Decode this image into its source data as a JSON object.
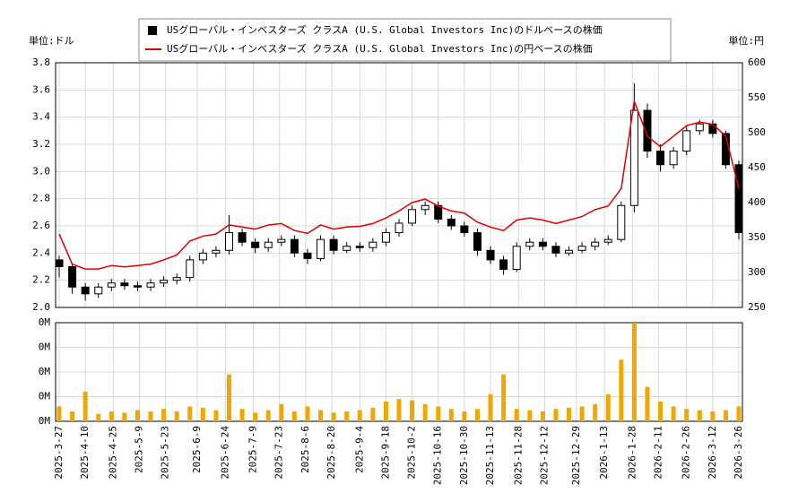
{
  "chart_data": [
    {
      "type": "candlestick",
      "x": [
        "2025-3-27",
        "2025-4-3",
        "2025-4-10",
        "2025-4-17",
        "2025-4-24",
        "2025-5-1",
        "2025-5-8",
        "2025-5-15",
        "2025-5-22",
        "2025-5-29",
        "2025-6-5",
        "2025-6-12",
        "2025-6-19",
        "2025-6-26",
        "2025-7-3",
        "2025-7-10",
        "2025-7-17",
        "2025-7-24",
        "2025-7-31",
        "2025-8-7",
        "2025-8-14",
        "2025-8-21",
        "2025-8-28",
        "2025-9-4",
        "2025-9-11",
        "2025-9-18",
        "2025-9-25",
        "2025-10-2",
        "2025-10-9",
        "2025-10-16",
        "2025-10-23",
        "2025-10-30",
        "2025-11-6",
        "2025-11-13",
        "2025-11-20",
        "2025-11-27",
        "2025-12-4",
        "2025-12-11",
        "2025-12-18",
        "2025-12-25",
        "2026-1-1",
        "2026-1-8",
        "2026-1-15",
        "2026-1-22",
        "2026-1-29",
        "2026-2-5",
        "2026-2-12",
        "2026-2-19",
        "2026-2-26",
        "2026-3-5",
        "2026-3-12",
        "2026-3-19",
        "2026-3-26"
      ],
      "series": [
        {
          "name": "USグローバル・インベスターズ クラスA (U.S. Global Investors Inc)のドルベースの株価",
          "color": "#000000",
          "open": [
            2.35,
            2.3,
            2.15,
            2.1,
            2.15,
            2.18,
            2.16,
            2.15,
            2.18,
            2.2,
            2.22,
            2.35,
            2.4,
            2.42,
            2.55,
            2.48,
            2.44,
            2.48,
            2.5,
            2.4,
            2.36,
            2.5,
            2.42,
            2.45,
            2.44,
            2.48,
            2.55,
            2.62,
            2.72,
            2.75,
            2.65,
            2.6,
            2.55,
            2.42,
            2.35,
            2.28,
            2.45,
            2.48,
            2.45,
            2.4,
            2.42,
            2.45,
            2.48,
            2.5,
            2.75,
            3.45,
            3.15,
            3.05,
            3.15,
            3.3,
            3.35,
            3.28,
            3.05
          ],
          "high": [
            2.38,
            2.32,
            2.18,
            2.18,
            2.21,
            2.21,
            2.19,
            2.21,
            2.23,
            2.25,
            2.38,
            2.43,
            2.45,
            2.68,
            2.58,
            2.51,
            2.51,
            2.53,
            2.53,
            2.43,
            2.53,
            2.53,
            2.48,
            2.48,
            2.51,
            2.58,
            2.65,
            2.75,
            2.78,
            2.78,
            2.68,
            2.63,
            2.58,
            2.45,
            2.38,
            2.48,
            2.51,
            2.51,
            2.48,
            2.45,
            2.48,
            2.51,
            2.53,
            2.78,
            3.65,
            3.5,
            3.2,
            3.18,
            3.33,
            3.38,
            3.38,
            3.3,
            3.08
          ],
          "low": [
            2.22,
            2.1,
            2.05,
            2.07,
            2.12,
            2.13,
            2.12,
            2.12,
            2.15,
            2.17,
            2.19,
            2.32,
            2.37,
            2.39,
            2.45,
            2.4,
            2.41,
            2.45,
            2.37,
            2.32,
            2.34,
            2.39,
            2.4,
            2.41,
            2.41,
            2.45,
            2.52,
            2.6,
            2.68,
            2.62,
            2.57,
            2.52,
            2.38,
            2.32,
            2.24,
            2.26,
            2.42,
            2.42,
            2.37,
            2.38,
            2.4,
            2.42,
            2.46,
            2.48,
            2.7,
            3.1,
            3.0,
            3.02,
            3.12,
            3.27,
            3.25,
            3.02,
            2.5
          ],
          "close": [
            2.3,
            2.15,
            2.1,
            2.15,
            2.18,
            2.16,
            2.15,
            2.18,
            2.2,
            2.22,
            2.35,
            2.4,
            2.42,
            2.55,
            2.48,
            2.44,
            2.48,
            2.5,
            2.4,
            2.36,
            2.5,
            2.42,
            2.45,
            2.44,
            2.48,
            2.55,
            2.62,
            2.72,
            2.75,
            2.65,
            2.6,
            2.55,
            2.42,
            2.35,
            2.28,
            2.45,
            2.48,
            2.45,
            2.4,
            2.42,
            2.45,
            2.48,
            2.5,
            2.75,
            3.45,
            3.15,
            3.05,
            3.15,
            3.3,
            3.35,
            3.28,
            3.05,
            2.55
          ]
        },
        {
          "name": "USグローバル・インベスターズ クラスA (U.S. Global Investors Inc)の円ベースの株価",
          "color": "#dd0000",
          "axis": "y2",
          "values": [
            355,
            312,
            305,
            305,
            310,
            308,
            310,
            312,
            318,
            325,
            345,
            352,
            355,
            368,
            365,
            362,
            368,
            370,
            360,
            356,
            368,
            362,
            365,
            366,
            370,
            378,
            388,
            400,
            405,
            395,
            388,
            385,
            372,
            365,
            360,
            375,
            378,
            375,
            370,
            375,
            380,
            390,
            395,
            420,
            545,
            495,
            480,
            495,
            510,
            515,
            512,
            495,
            420
          ]
        }
      ],
      "ylabel": "単位:ドル",
      "y2label": "単位:円",
      "ylim": [
        2.0,
        3.8
      ],
      "yticks": [
        {
          "value": 2,
          "label": "2.0"
        },
        2.2,
        2.4,
        2.6,
        2.8,
        {
          "value": 3,
          "label": "3.0"
        },
        3.2,
        3.4,
        3.6,
        3.8
      ],
      "y2lim": [
        250,
        600
      ],
      "y2ticks": [
        250,
        300,
        350,
        400,
        450,
        500,
        550,
        600
      ],
      "grid": true,
      "legend": "top"
    },
    {
      "type": "bar",
      "color": "#f0a800",
      "values": [
        60000,
        40000,
        120000,
        30000,
        40000,
        35000,
        45000,
        40000,
        50000,
        40000,
        60000,
        55000,
        45000,
        190000,
        50000,
        35000,
        45000,
        70000,
        40000,
        60000,
        45000,
        35000,
        40000,
        45000,
        55000,
        80000,
        90000,
        85000,
        70000,
        60000,
        50000,
        40000,
        50000,
        110000,
        190000,
        50000,
        45000,
        40000,
        50000,
        55000,
        60000,
        70000,
        110000,
        250000,
        400000,
        140000,
        80000,
        60000,
        50000,
        45000,
        40000,
        45000,
        60000
      ],
      "ylim": [
        0,
        400000
      ],
      "yticks": [
        {
          "value": 0,
          "label": "0M"
        },
        {
          "value": 100000,
          "label": "0M"
        },
        {
          "value": 200000,
          "label": "0M"
        },
        {
          "value": 300000,
          "label": "0M"
        },
        {
          "value": 400000,
          "label": "0M"
        }
      ],
      "xticks": [
        "2025-3-27",
        "2025-4-10",
        "2025-4-25",
        "2025-5-9",
        "2025-5-23",
        "2025-6-9",
        "2025-6-24",
        "2025-7-9",
        "2025-7-23",
        "2025-8-6",
        "2025-8-20",
        "2025-9-4",
        "2025-9-18",
        "2025-10-2",
        "2025-10-16",
        "2025-10-30",
        "2025-11-13",
        "2025-11-28",
        "2025-12-12",
        "2025-12-29",
        "2026-1-13",
        "2026-1-28",
        "2026-2-11",
        "2026-2-26",
        "2026-3-12",
        "2026-3-26"
      ],
      "grid": true
    }
  ]
}
